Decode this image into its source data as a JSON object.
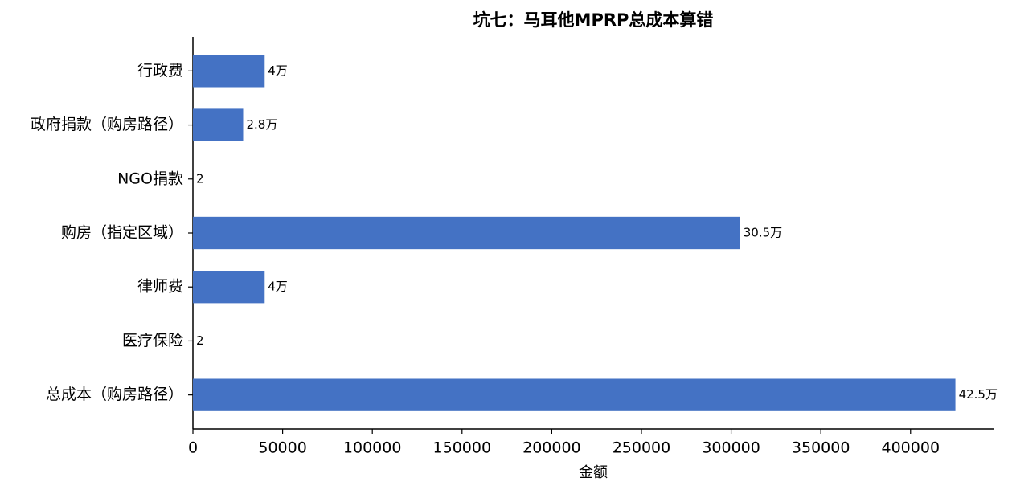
{
  "chart_data": {
    "type": "barh",
    "title": "坑七：马耳他MPRP总成本算错",
    "xlabel": "金额",
    "categories": [
      "行政费",
      "政府捐款（购房路径）",
      "NGO捐款",
      "购房（指定区域）",
      "律师费",
      "医疗保险",
      "总成本（购房路径）"
    ],
    "values": [
      40000,
      28000,
      2,
      305000,
      40000,
      2,
      425000
    ],
    "value_labels": [
      "4万",
      "2.8万",
      "2",
      "30.5万",
      "4万",
      "2",
      "42.5万"
    ],
    "color": "#4472c4",
    "xlim": [
      0,
      446250
    ],
    "xticks": [
      0,
      50000,
      100000,
      150000,
      200000,
      250000,
      300000,
      350000,
      400000
    ]
  }
}
